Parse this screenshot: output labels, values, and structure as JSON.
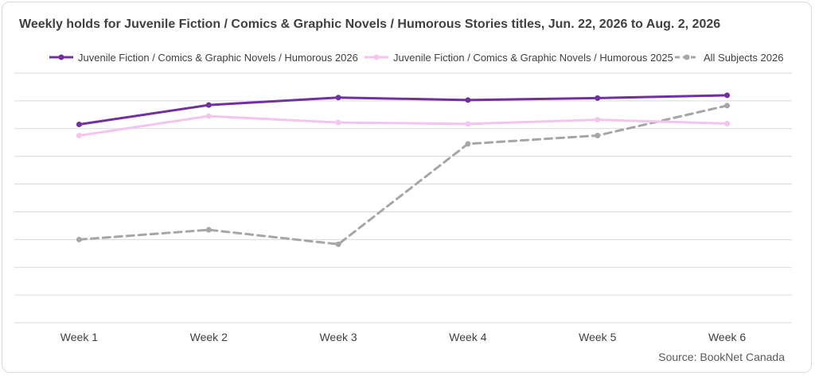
{
  "title": "Weekly holds for Juvenile Fiction / Comics & Graphic Novels / Humorous Stories titles, Jun. 22, 2026 to Aug. 2, 2026",
  "source": "Source: BookNet Canada",
  "colors": {
    "series_2026": "#7030a0",
    "series_2025": "#f2c4ee",
    "all_subjects": "#a6a6a6",
    "grid": "#d9d9d9"
  },
  "chart_data": {
    "type": "line",
    "title": "Weekly holds for Juvenile Fiction / Comics & Graphic Novels / Humorous Stories titles, Jun. 22, 2026 to Aug. 2, 2026",
    "categories": [
      "Week 1",
      "Week 2",
      "Week 3",
      "Week 4",
      "Week 5",
      "Week 6"
    ],
    "ylim": [
      0,
      9
    ],
    "grid": true,
    "legend_position": "top",
    "series": [
      {
        "name": "Juvenile Fiction / Comics & Graphic Novels / Humorous 2026",
        "values": [
          7.15,
          7.85,
          8.12,
          8.03,
          8.1,
          8.2
        ],
        "style": "solid"
      },
      {
        "name": "Juvenile Fiction / Comics & Graphic Novels / Humorous 2025",
        "values": [
          6.75,
          7.45,
          7.22,
          7.17,
          7.32,
          7.18
        ],
        "style": "solid"
      },
      {
        "name": "All Subjects 2026",
        "values": [
          3.0,
          3.35,
          2.83,
          6.45,
          6.75,
          7.83
        ],
        "style": "dashed"
      }
    ]
  }
}
